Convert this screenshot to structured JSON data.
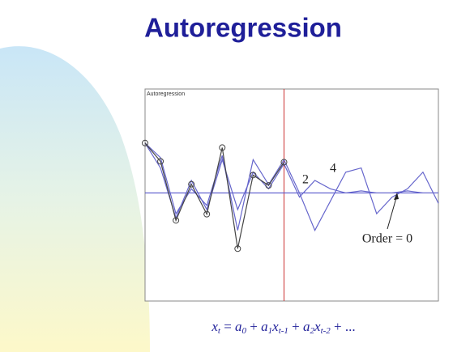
{
  "slide_title": "Autoregression",
  "chart_data": {
    "type": "line",
    "title": "Autoregression",
    "x": [
      0,
      1,
      2,
      3,
      4,
      5,
      6,
      7,
      8,
      9,
      10,
      11,
      12,
      13,
      14,
      15,
      16,
      17,
      18,
      19
    ],
    "xlim": [
      0,
      19
    ],
    "ylim": [
      -2.6,
      2.5
    ],
    "cursor_x": 9,
    "cursor_color": "#cc3333",
    "series": [
      {
        "color": "#5555cc",
        "values": [
          0,
          0,
          0,
          0,
          0,
          0,
          0,
          0,
          0,
          0,
          0,
          0,
          0,
          0,
          0,
          0,
          0,
          0,
          0,
          0
        ]
      },
      {
        "color": "#6666cc",
        "values": [
          1.2,
          0.6,
          -0.6,
          0.3,
          -0.4,
          0.8,
          -0.4,
          0.5,
          0.1,
          0.7,
          -0.1,
          0.3,
          0.1,
          0.0,
          0.05,
          0.0,
          0.0,
          0.05,
          0.0,
          0.0
        ]
      },
      {
        "color": "#6666cc",
        "values": [
          1.2,
          0.85,
          -0.5,
          0.1,
          -0.3,
          0.9,
          -0.9,
          0.8,
          0.2,
          0.8,
          0.0,
          -0.9,
          -0.2,
          0.5,
          0.6,
          -0.5,
          -0.1,
          0.1,
          0.5,
          -0.25
        ]
      },
      {
        "color": "#444444",
        "markers": true,
        "values": [
          1.2,
          0.76,
          -0.66,
          0.21,
          -0.51,
          1.09,
          -1.34,
          0.43,
          0.18,
          0.74,
          null,
          null,
          null,
          null,
          null,
          null,
          null,
          null,
          null,
          null
        ]
      }
    ],
    "annotations": [
      "2",
      "4",
      "Order = 0"
    ]
  },
  "formula": [
    {
      "text": "x",
      "sub": "t"
    },
    {
      "text": " = "
    },
    {
      "text": "a",
      "sub": "0"
    },
    {
      "text": " + "
    },
    {
      "text": "a",
      "sub": "1"
    },
    {
      "text": "x",
      "sub": "t-1"
    },
    {
      "text": " + "
    },
    {
      "text": "a",
      "sub": "2"
    },
    {
      "text": "x",
      "sub": "t-2"
    },
    {
      "text": " + ..."
    }
  ]
}
